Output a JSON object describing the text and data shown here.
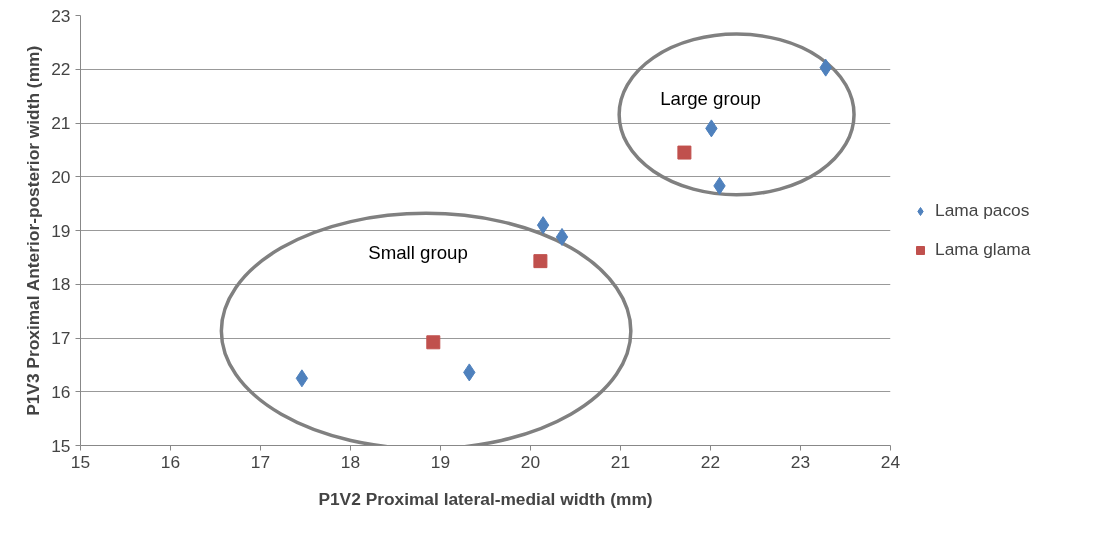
{
  "chart_data": {
    "type": "scatter",
    "xlabel": "P1V2 Proximal lateral-medial width (mm)",
    "ylabel": "P1V3 Proximal Anterior-posterior width (mm)",
    "xlim": [
      15,
      24
    ],
    "xticks": [
      15,
      16,
      17,
      18,
      19,
      20,
      21,
      22,
      23,
      24
    ],
    "ylim": [
      15,
      23
    ],
    "yticks": [
      15,
      16,
      17,
      18,
      19,
      20,
      21,
      22,
      23
    ],
    "grid": "y",
    "legend": "right",
    "series": [
      {
        "name": "Lama pacos",
        "color": "#4f81bd",
        "marker": "diamond",
        "x": [
          17.46,
          19.32,
          20.14,
          20.35,
          22.01,
          22.1,
          23.28
        ],
        "values": [
          16.25,
          16.36,
          19.1,
          18.88,
          20.9,
          19.83,
          22.03
        ]
      },
      {
        "name": "Lama glama",
        "color": "#c0504d",
        "marker": "square",
        "x": [
          18.92,
          20.11,
          21.71
        ],
        "values": [
          16.92,
          18.43,
          20.45
        ]
      }
    ],
    "annotations": [
      "Small group",
      "Large group"
    ]
  }
}
